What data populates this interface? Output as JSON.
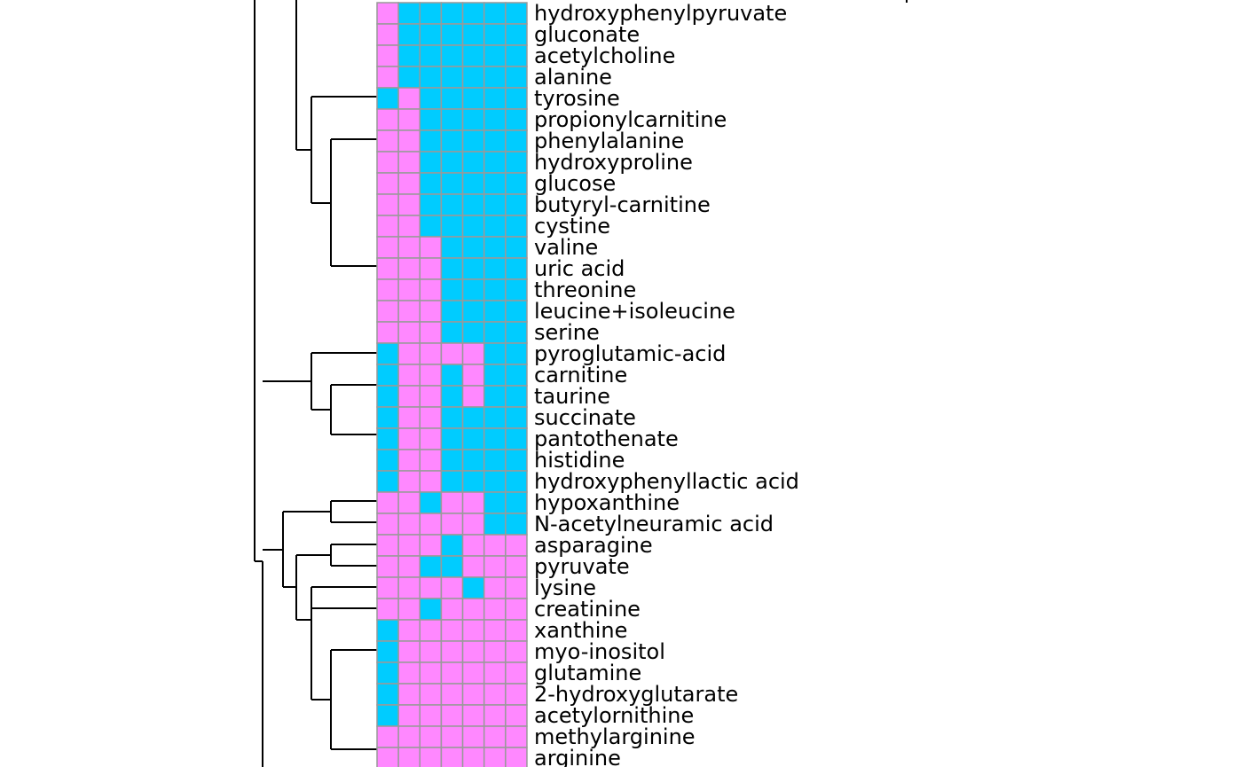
{
  "colors": {
    "high": "#FF88FF",
    "low": "#00CCFF",
    "grid": "#999999",
    "dendrogram": "#000000"
  },
  "chart_data": {
    "type": "heatmap",
    "title": "",
    "xlabel": "",
    "ylabel": "",
    "columns": 7,
    "value_legend": {
      "1": "magenta",
      "0": "cyan"
    },
    "rows": [
      "hydroxyphenylpyruvate",
      "gluconate",
      "acetylcholine",
      "alanine",
      "tyrosine",
      "propionylcarnitine",
      "phenylalanine",
      "hydroxyproline",
      "glucose",
      "butyryl-carnitine",
      "cystine",
      "valine",
      "uric acid",
      "threonine",
      "leucine+isoleucine",
      "serine",
      "pyroglutamic-acid",
      "carnitine",
      "taurine",
      "succinate",
      "pantothenate",
      "histidine",
      "hydroxyphenyllactic acid",
      "hypoxanthine",
      "N-acetylneuramic acid",
      "asparagine",
      "pyruvate",
      "lysine",
      "creatinine",
      "xanthine",
      "myo-inositol",
      "glutamine",
      "2-hydroxyglutarate",
      "acetylornithine",
      "methylarginine",
      "arginine"
    ],
    "values": [
      [
        1,
        0,
        0,
        0,
        0,
        0,
        0
      ],
      [
        1,
        0,
        0,
        0,
        0,
        0,
        0
      ],
      [
        1,
        0,
        0,
        0,
        0,
        0,
        0
      ],
      [
        1,
        0,
        0,
        0,
        0,
        0,
        0
      ],
      [
        0,
        1,
        0,
        0,
        0,
        0,
        0
      ],
      [
        1,
        1,
        0,
        0,
        0,
        0,
        0
      ],
      [
        1,
        1,
        0,
        0,
        0,
        0,
        0
      ],
      [
        1,
        1,
        0,
        0,
        0,
        0,
        0
      ],
      [
        1,
        1,
        0,
        0,
        0,
        0,
        0
      ],
      [
        1,
        1,
        0,
        0,
        0,
        0,
        0
      ],
      [
        1,
        1,
        0,
        0,
        0,
        0,
        0
      ],
      [
        1,
        1,
        1,
        0,
        0,
        0,
        0
      ],
      [
        1,
        1,
        1,
        0,
        0,
        0,
        0
      ],
      [
        1,
        1,
        1,
        0,
        0,
        0,
        0
      ],
      [
        1,
        1,
        1,
        0,
        0,
        0,
        0
      ],
      [
        1,
        1,
        1,
        0,
        0,
        0,
        0
      ],
      [
        0,
        1,
        1,
        1,
        1,
        0,
        0
      ],
      [
        0,
        1,
        1,
        0,
        1,
        0,
        0
      ],
      [
        0,
        1,
        1,
        0,
        1,
        0,
        0
      ],
      [
        0,
        1,
        1,
        0,
        0,
        0,
        0
      ],
      [
        0,
        1,
        1,
        0,
        0,
        0,
        0
      ],
      [
        0,
        1,
        1,
        0,
        0,
        0,
        0
      ],
      [
        0,
        1,
        1,
        0,
        0,
        0,
        0
      ],
      [
        1,
        1,
        0,
        1,
        1,
        0,
        0
      ],
      [
        1,
        1,
        1,
        1,
        1,
        0,
        0
      ],
      [
        1,
        1,
        1,
        0,
        1,
        1,
        1
      ],
      [
        1,
        1,
        0,
        0,
        1,
        1,
        1
      ],
      [
        1,
        1,
        1,
        1,
        0,
        1,
        1
      ],
      [
        1,
        1,
        0,
        1,
        1,
        1,
        1
      ],
      [
        0,
        1,
        1,
        1,
        1,
        1,
        1
      ],
      [
        0,
        1,
        1,
        1,
        1,
        1,
        1
      ],
      [
        0,
        1,
        1,
        1,
        1,
        1,
        1
      ],
      [
        0,
        1,
        1,
        1,
        1,
        1,
        1
      ],
      [
        0,
        1,
        1,
        1,
        1,
        1,
        1
      ],
      [
        1,
        1,
        1,
        1,
        1,
        1,
        1
      ],
      [
        1,
        1,
        1,
        1,
        1,
        1,
        1
      ]
    ],
    "row_dendrogram": {
      "note": "partial view; branches cut at top and bottom edges",
      "clusters": [
        [
          "tyrosine",
          [
            "propionylcarnitine..cystine",
            "valine..serine"
          ]
        ],
        [
          [
            "pyroglutamic-acid"
          ],
          [
            "carnitine",
            "taurine"
          ],
          [
            "succinate..hydroxyphenyllactic acid"
          ]
        ],
        [
          [
            "hypoxanthine",
            "N-acetylneuramic acid"
          ],
          [
            "asparagine",
            "pyruvate"
          ],
          [
            "lysine",
            "creatinine"
          ],
          [
            "xanthine..arginine"
          ]
        ]
      ]
    }
  }
}
